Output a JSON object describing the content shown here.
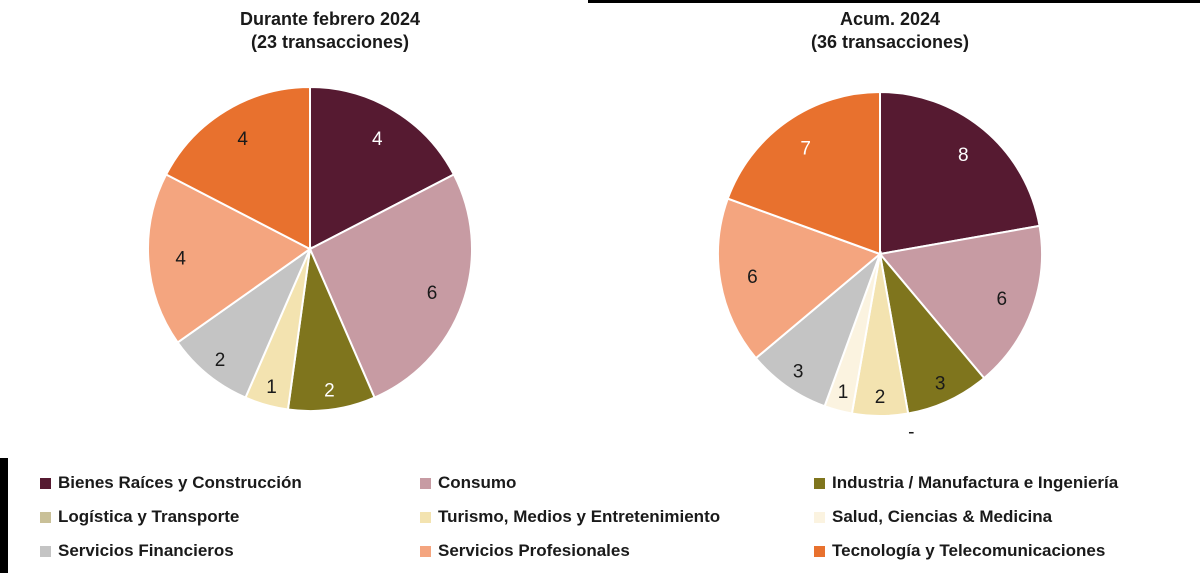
{
  "page": {
    "background": "#ffffff",
    "text_color": "#1a1a1a",
    "rule_color": "#000000"
  },
  "chart_data": [
    {
      "type": "pie",
      "title": "Durante febrero 2024",
      "subtitle": "(23 transacciones)",
      "total": 23,
      "start_angle_deg": 0,
      "direction": "clockwise",
      "slices": [
        {
          "id": "bienes-raices-y-construccion",
          "label": "Bienes Raíces y Construcción",
          "value": 4,
          "color": "#561a31",
          "text_color": "#ffffff"
        },
        {
          "id": "consumo",
          "label": "Consumo",
          "value": 6,
          "color": "#c79ba3",
          "text_color": "#1a1a1a"
        },
        {
          "id": "industria-manufactura-e-ingenieria",
          "label": "Industria / Manufactura e Ingeniería",
          "value": 2,
          "color": "#7f751d",
          "text_color": "#ffffff"
        },
        {
          "id": "turismo-medios-y-entretenimiento",
          "label": "Turismo, Medios y Entretenimiento",
          "value": 1,
          "color": "#f3e3b0",
          "text_color": "#1a1a1a"
        },
        {
          "id": "servicios-financieros",
          "label": "Servicios Financieros",
          "value": 2,
          "color": "#c4c4c4",
          "text_color": "#1a1a1a"
        },
        {
          "id": "servicios-profesionales",
          "label": "Servicios Profesionales",
          "value": 4,
          "color": "#f4a57f",
          "text_color": "#1a1a1a"
        },
        {
          "id": "tecnologia-y-telecomunicaciones",
          "label": "Tecnología y Telecomunicaciones",
          "value": 4,
          "color": "#e8712e",
          "text_color": "#1a1a1a"
        }
      ]
    },
    {
      "type": "pie",
      "title": "Acum. 2024",
      "subtitle": "(36 transacciones)",
      "total": 36,
      "start_angle_deg": 0,
      "direction": "clockwise",
      "slices": [
        {
          "id": "bienes-raices-y-construccion",
          "label": "Bienes Raíces y Construcción",
          "value": 8,
          "color": "#561a31",
          "text_color": "#ffffff"
        },
        {
          "id": "consumo",
          "label": "Consumo",
          "value": 6,
          "color": "#c79ba3",
          "text_color": "#1a1a1a"
        },
        {
          "id": "industria-manufactura-e-ingenieria",
          "label": "Industria / Manufactura e Ingeniería",
          "value": 3,
          "color": "#7f751d",
          "text_color": "#1a1a1a"
        },
        {
          "id": "logistica-y-transporte",
          "label": "Logística y Transporte",
          "value": 0,
          "color": "#c9c098",
          "zero_label": "-"
        },
        {
          "id": "turismo-medios-y-entretenimiento",
          "label": "Turismo, Medios y Entretenimiento",
          "value": 2,
          "color": "#f3e3b0",
          "text_color": "#1a1a1a"
        },
        {
          "id": "salud-ciencias-medicina",
          "label": "Salud, Ciencias & Medicina",
          "value": 1,
          "color": "#fbf3e0",
          "text_color": "#1a1a1a"
        },
        {
          "id": "servicios-financieros",
          "label": "Servicios Financieros",
          "value": 3,
          "color": "#c4c4c4",
          "text_color": "#1a1a1a"
        },
        {
          "id": "servicios-profesionales",
          "label": "Servicios Profesionales",
          "value": 6,
          "color": "#f4a57f",
          "text_color": "#1a1a1a"
        },
        {
          "id": "tecnologia-y-telecomunicaciones",
          "label": "Tecnología y Telecomunicaciones",
          "value": 7,
          "color": "#e8712e",
          "text_color": "#ffffff"
        }
      ]
    }
  ],
  "legend": {
    "items": [
      {
        "id": "bienes-raices-y-construccion",
        "label": "Bienes Raíces y Construcción",
        "color": "#561a31"
      },
      {
        "id": "consumo",
        "label": "Consumo",
        "color": "#c79ba3"
      },
      {
        "id": "industria-manufactura-e-ingenieria",
        "label": "Industria / Manufactura e Ingeniería",
        "color": "#7f751d"
      },
      {
        "id": "logistica-y-transporte",
        "label": "Logística y Transporte",
        "color": "#c9c098"
      },
      {
        "id": "turismo-medios-y-entretenimiento",
        "label": "Turismo, Medios y Entretenimiento",
        "color": "#f3e3b0"
      },
      {
        "id": "salud-ciencias-medicina",
        "label": "Salud, Ciencias & Medicina",
        "color": "#fbf3e0"
      },
      {
        "id": "servicios-financieros",
        "label": "Servicios Financieros",
        "color": "#c4c4c4"
      },
      {
        "id": "servicios-profesionales",
        "label": "Servicios Profesionales",
        "color": "#f4a57f"
      },
      {
        "id": "tecnologia-y-telecomunicaciones",
        "label": "Tecnología y Telecomunicaciones",
        "color": "#e8712e"
      }
    ]
  }
}
